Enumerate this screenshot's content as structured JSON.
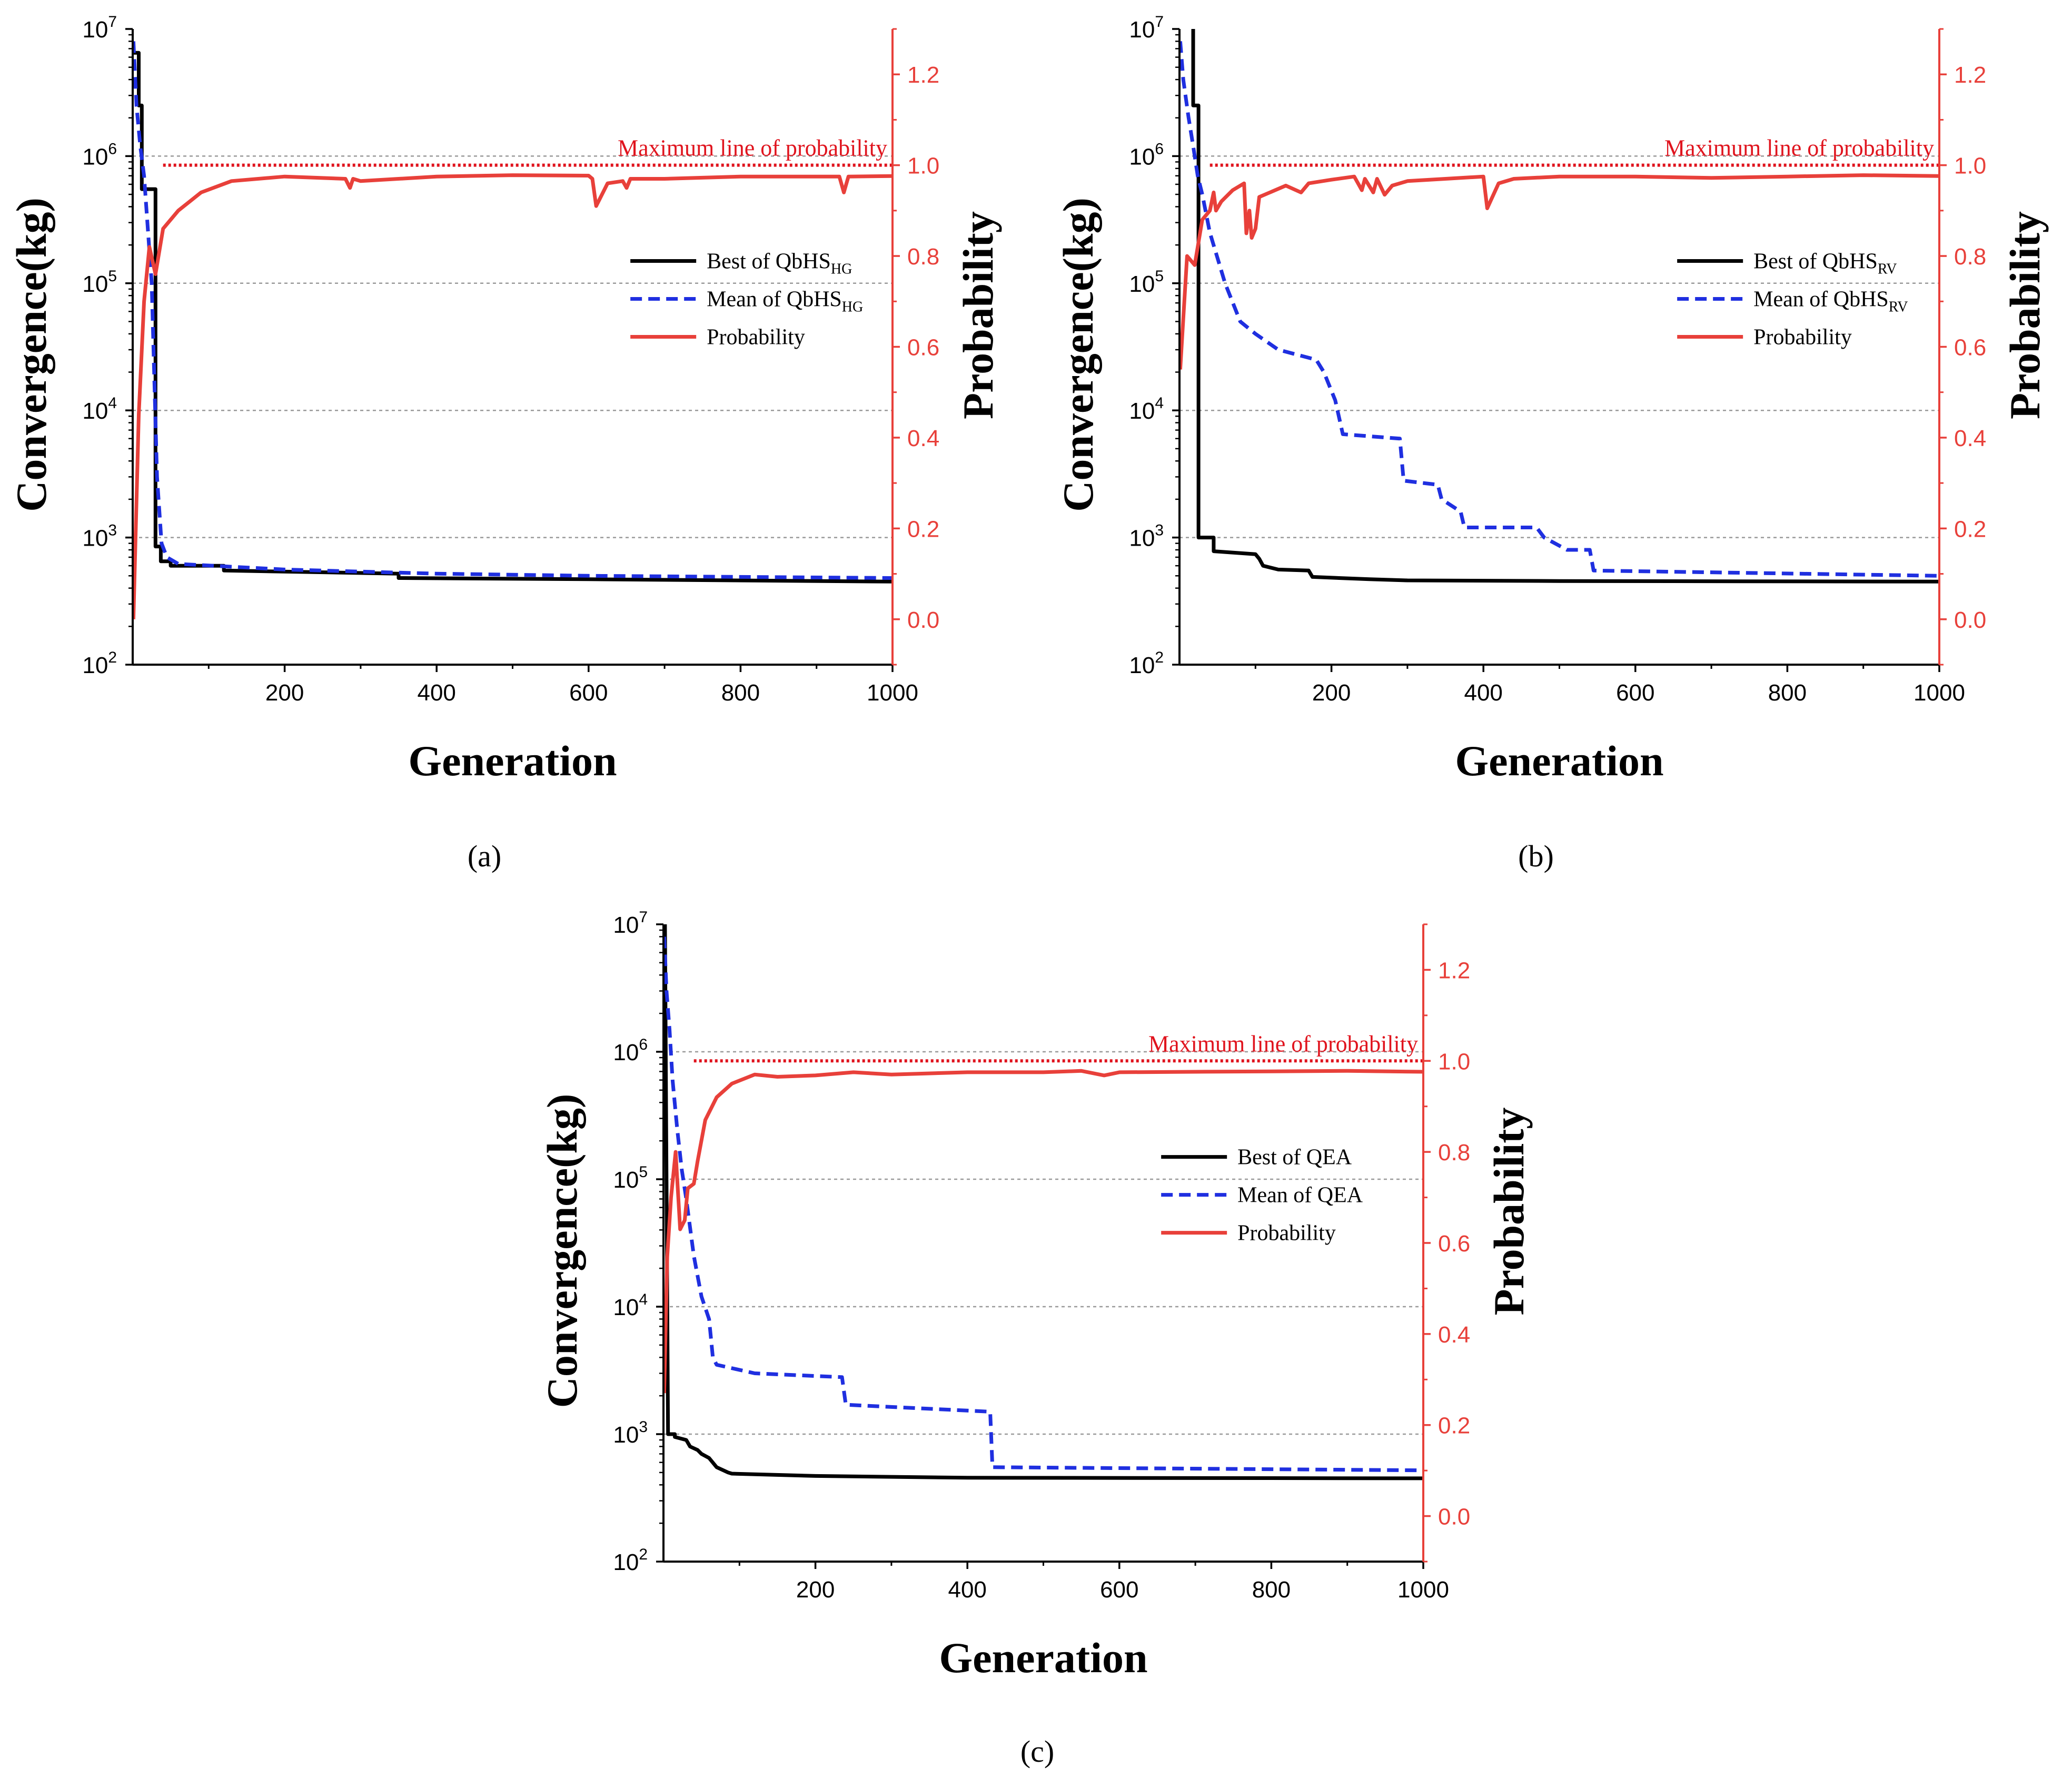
{
  "colors": {
    "best": "#000000",
    "mean": "#1f2fe0",
    "prob": "#e8403a",
    "maxline": "#e0141e",
    "grid": "#9a9a9a"
  },
  "chart_data": [
    {
      "id": "a",
      "type": "line",
      "caption": "(a)",
      "xlabel": "Generation",
      "ylabel_left": "Convergence(kg)",
      "ylabel_right": "Probability",
      "xlim": [
        0,
        1000
      ],
      "ylim_left_log10": [
        2,
        7
      ],
      "ylim_right": [
        -0.1,
        1.3
      ],
      "x_ticks": [
        "200",
        "400",
        "600",
        "800",
        "1000"
      ],
      "y_left_ticks": [
        {
          "base": "10",
          "exp": "2"
        },
        {
          "base": "10",
          "exp": "3"
        },
        {
          "base": "10",
          "exp": "4"
        },
        {
          "base": "10",
          "exp": "5"
        },
        {
          "base": "10",
          "exp": "6"
        },
        {
          "base": "10",
          "exp": "7"
        }
      ],
      "y_right_ticks": [
        "0.0",
        "0.2",
        "0.4",
        "0.6",
        "0.8",
        "1.0",
        "1.2"
      ],
      "grid": "horizontal dotted at left decades",
      "max_line": {
        "value": 1.0,
        "label": "Maximum line of probability"
      },
      "legend": [
        {
          "prefix": "Best of QbHS",
          "sub": "HG"
        },
        {
          "prefix": "Mean of QbHS",
          "sub": "HG"
        },
        {
          "prefix": "Probability",
          "sub": ""
        }
      ],
      "series": [
        {
          "name": "Best",
          "style": "solid",
          "axis": "left",
          "points": [
            [
              1,
              6500000
            ],
            [
              8,
              6500000
            ],
            [
              8,
              2500000
            ],
            [
              12,
              2500000
            ],
            [
              12,
              550000
            ],
            [
              30,
              550000
            ],
            [
              30,
              850
            ],
            [
              37,
              850
            ],
            [
              37,
              650
            ],
            [
              50,
              650
            ],
            [
              50,
              600
            ],
            [
              120,
              600
            ],
            [
              120,
              550
            ],
            [
              350,
              520
            ],
            [
              350,
              480
            ],
            [
              600,
              470
            ],
            [
              1000,
              450
            ]
          ]
        },
        {
          "name": "Mean",
          "style": "dashed",
          "axis": "left",
          "points": [
            [
              1,
              8000000
            ],
            [
              5,
              2500000
            ],
            [
              10,
              1200000
            ],
            [
              15,
              700000
            ],
            [
              25,
              100000
            ],
            [
              32,
              3000
            ],
            [
              38,
              900
            ],
            [
              45,
              700
            ],
            [
              60,
              620
            ],
            [
              200,
              560
            ],
            [
              400,
              520
            ],
            [
              600,
              500
            ],
            [
              800,
              490
            ],
            [
              1000,
              480
            ]
          ]
        },
        {
          "name": "Probability",
          "style": "solid",
          "axis": "right",
          "points": [
            [
              1,
              0.0
            ],
            [
              8,
              0.45
            ],
            [
              15,
              0.7
            ],
            [
              22,
              0.82
            ],
            [
              30,
              0.76
            ],
            [
              40,
              0.86
            ],
            [
              60,
              0.9
            ],
            [
              90,
              0.94
            ],
            [
              130,
              0.965
            ],
            [
              200,
              0.975
            ],
            [
              280,
              0.97
            ],
            [
              286,
              0.95
            ],
            [
              290,
              0.97
            ],
            [
              300,
              0.965
            ],
            [
              400,
              0.975
            ],
            [
              500,
              0.978
            ],
            [
              600,
              0.977
            ],
            [
              605,
              0.97
            ],
            [
              610,
              0.91
            ],
            [
              625,
              0.96
            ],
            [
              645,
              0.965
            ],
            [
              650,
              0.95
            ],
            [
              655,
              0.97
            ],
            [
              700,
              0.97
            ],
            [
              800,
              0.975
            ],
            [
              930,
              0.975
            ],
            [
              936,
              0.94
            ],
            [
              942,
              0.975
            ],
            [
              1000,
              0.976
            ]
          ]
        }
      ]
    },
    {
      "id": "b",
      "type": "line",
      "caption": "(b)",
      "xlabel": "Generation",
      "ylabel_left": "Convergence(kg)",
      "ylabel_right": "Probability",
      "xlim": [
        0,
        1000
      ],
      "ylim_left_log10": [
        2,
        7
      ],
      "ylim_right": [
        -0.1,
        1.3
      ],
      "x_ticks": [
        "200",
        "400",
        "600",
        "800",
        "1000"
      ],
      "y_left_ticks": [
        {
          "base": "10",
          "exp": "2"
        },
        {
          "base": "10",
          "exp": "3"
        },
        {
          "base": "10",
          "exp": "4"
        },
        {
          "base": "10",
          "exp": "5"
        },
        {
          "base": "10",
          "exp": "6"
        },
        {
          "base": "10",
          "exp": "7"
        }
      ],
      "y_right_ticks": [
        "0.0",
        "0.2",
        "0.4",
        "0.6",
        "0.8",
        "1.0",
        "1.2"
      ],
      "grid": "horizontal dotted at left decades",
      "max_line": {
        "value": 1.0,
        "label": "Maximum line of probability"
      },
      "legend": [
        {
          "prefix": "Best of QbHS",
          "sub": "RV"
        },
        {
          "prefix": "Mean of QbHS",
          "sub": "RV"
        },
        {
          "prefix": "Probability",
          "sub": ""
        }
      ],
      "series": [
        {
          "name": "Best",
          "style": "solid",
          "axis": "left",
          "points": [
            [
              18,
              10000000
            ],
            [
              18,
              2500000
            ],
            [
              25,
              2500000
            ],
            [
              25,
              1000
            ],
            [
              45,
              1000
            ],
            [
              45,
              780
            ],
            [
              100,
              740
            ],
            [
              105,
              680
            ],
            [
              110,
              600
            ],
            [
              130,
              560
            ],
            [
              170,
              550
            ],
            [
              175,
              490
            ],
            [
              250,
              470
            ],
            [
              300,
              460
            ],
            [
              500,
              455
            ],
            [
              1000,
              450
            ]
          ]
        },
        {
          "name": "Mean",
          "style": "dashed",
          "axis": "left",
          "points": [
            [
              1,
              8000000
            ],
            [
              5,
              4000000
            ],
            [
              12,
              2000000
            ],
            [
              18,
              1200000
            ],
            [
              24,
              700000
            ],
            [
              30,
              500000
            ],
            [
              40,
              250000
            ],
            [
              60,
              100000
            ],
            [
              80,
              50000
            ],
            [
              100,
              40000
            ],
            [
              130,
              30000
            ],
            [
              180,
              25000
            ],
            [
              190,
              20000
            ],
            [
              205,
              12000
            ],
            [
              215,
              6500
            ],
            [
              290,
              6000
            ],
            [
              295,
              2800
            ],
            [
              340,
              2600
            ],
            [
              345,
              2000
            ],
            [
              370,
              1600
            ],
            [
              375,
              1200
            ],
            [
              470,
              1200
            ],
            [
              480,
              1000
            ],
            [
              510,
              800
            ],
            [
              540,
              800
            ],
            [
              545,
              550
            ],
            [
              1000,
              500
            ]
          ]
        },
        {
          "name": "Probability",
          "style": "solid",
          "axis": "right",
          "points": [
            [
              1,
              0.55
            ],
            [
              10,
              0.8
            ],
            [
              20,
              0.78
            ],
            [
              30,
              0.88
            ],
            [
              40,
              0.9
            ],
            [
              45,
              0.94
            ],
            [
              48,
              0.9
            ],
            [
              55,
              0.92
            ],
            [
              70,
              0.945
            ],
            [
              85,
              0.96
            ],
            [
              88,
              0.85
            ],
            [
              92,
              0.9
            ],
            [
              95,
              0.84
            ],
            [
              100,
              0.86
            ],
            [
              105,
              0.93
            ],
            [
              140,
              0.955
            ],
            [
              160,
              0.94
            ],
            [
              170,
              0.96
            ],
            [
              200,
              0.968
            ],
            [
              230,
              0.975
            ],
            [
              240,
              0.945
            ],
            [
              244,
              0.97
            ],
            [
              255,
              0.94
            ],
            [
              260,
              0.97
            ],
            [
              270,
              0.935
            ],
            [
              280,
              0.955
            ],
            [
              300,
              0.965
            ],
            [
              350,
              0.97
            ],
            [
              400,
              0.975
            ],
            [
              405,
              0.905
            ],
            [
              420,
              0.96
            ],
            [
              440,
              0.97
            ],
            [
              500,
              0.975
            ],
            [
              600,
              0.975
            ],
            [
              700,
              0.972
            ],
            [
              800,
              0.975
            ],
            [
              900,
              0.978
            ],
            [
              1000,
              0.976
            ]
          ]
        }
      ]
    },
    {
      "id": "c",
      "type": "line",
      "caption": "(c)",
      "xlabel": "Generation",
      "ylabel_left": "Convergence(kg)",
      "ylabel_right": "Probability",
      "xlim": [
        0,
        1000
      ],
      "ylim_left_log10": [
        2,
        7
      ],
      "ylim_right": [
        -0.1,
        1.3
      ],
      "x_ticks": [
        "200",
        "400",
        "600",
        "800",
        "1000"
      ],
      "y_left_ticks": [
        {
          "base": "10",
          "exp": "2"
        },
        {
          "base": "10",
          "exp": "3"
        },
        {
          "base": "10",
          "exp": "4"
        },
        {
          "base": "10",
          "exp": "5"
        },
        {
          "base": "10",
          "exp": "6"
        },
        {
          "base": "10",
          "exp": "7"
        }
      ],
      "y_right_ticks": [
        "0.0",
        "0.2",
        "0.4",
        "0.6",
        "0.8",
        "1.0",
        "1.2"
      ],
      "grid": "horizontal dotted at left decades",
      "max_line": {
        "value": 1.0,
        "label": "Maximum line of probability"
      },
      "legend": [
        {
          "prefix": "Best of QEA",
          "sub": ""
        },
        {
          "prefix": "Mean of QEA",
          "sub": ""
        },
        {
          "prefix": "Probability",
          "sub": ""
        }
      ],
      "series": [
        {
          "name": "Best",
          "style": "solid",
          "axis": "left",
          "points": [
            [
              2,
              10000000
            ],
            [
              6,
              1000
            ],
            [
              15,
              1000
            ],
            [
              15,
              950
            ],
            [
              30,
              900
            ],
            [
              35,
              800
            ],
            [
              45,
              750
            ],
            [
              50,
              700
            ],
            [
              60,
              650
            ],
            [
              70,
              550
            ],
            [
              85,
              500
            ],
            [
              90,
              490
            ],
            [
              200,
              470
            ],
            [
              400,
              455
            ],
            [
              1000,
              450
            ]
          ]
        },
        {
          "name": "Mean",
          "style": "dashed",
          "axis": "left",
          "points": [
            [
              1,
              8000000
            ],
            [
              4,
              3000000
            ],
            [
              8,
              1500000
            ],
            [
              12,
              600000
            ],
            [
              18,
              250000
            ],
            [
              24,
              120000
            ],
            [
              30,
              70000
            ],
            [
              40,
              25000
            ],
            [
              50,
              12000
            ],
            [
              60,
              8000
            ],
            [
              65,
              4000
            ],
            [
              70,
              3500
            ],
            [
              120,
              3000
            ],
            [
              235,
              2800
            ],
            [
              240,
              1700
            ],
            [
              430,
              1500
            ],
            [
              433,
              550
            ],
            [
              1000,
              520
            ]
          ]
        },
        {
          "name": "Probability",
          "style": "solid",
          "axis": "right",
          "points": [
            [
              1,
              0.27
            ],
            [
              5,
              0.57
            ],
            [
              10,
              0.7
            ],
            [
              16,
              0.8
            ],
            [
              22,
              0.63
            ],
            [
              28,
              0.65
            ],
            [
              32,
              0.72
            ],
            [
              40,
              0.73
            ],
            [
              45,
              0.78
            ],
            [
              55,
              0.87
            ],
            [
              70,
              0.92
            ],
            [
              90,
              0.95
            ],
            [
              120,
              0.97
            ],
            [
              150,
              0.965
            ],
            [
              200,
              0.968
            ],
            [
              250,
              0.975
            ],
            [
              300,
              0.97
            ],
            [
              400,
              0.975
            ],
            [
              500,
              0.975
            ],
            [
              550,
              0.978
            ],
            [
              580,
              0.968
            ],
            [
              600,
              0.975
            ],
            [
              700,
              0.976
            ],
            [
              800,
              0.977
            ],
            [
              900,
              0.978
            ],
            [
              1000,
              0.976
            ]
          ]
        }
      ]
    }
  ]
}
